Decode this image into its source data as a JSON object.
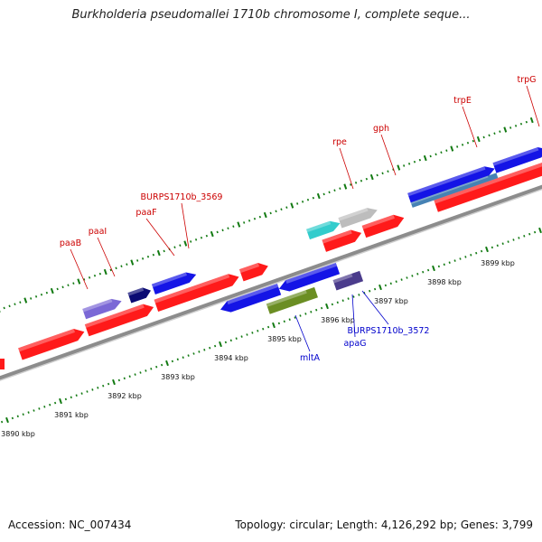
{
  "title": "Burkholderia pseudomallei 1710b chromosome I, complete seque...",
  "footer": {
    "accession": "Accession: NC_007434",
    "stats": "Topology: circular; Length: 4,126,292 bp; Genes: 3,799"
  },
  "colors": {
    "backbone": "#8c8c8c",
    "tick": "#127a12",
    "forward_label": "#cc0000",
    "reverse_label": "#0000cc",
    "cds": "#ff1a1a",
    "gene_blue": "#1414e6",
    "gene_navy": "#0a0a73",
    "gene_lavender": "#7b68d6",
    "gene_cyan": "#33cccc",
    "gene_gray": "#bdbdbd",
    "gene_olive": "#6b8e23",
    "gene_purple": "#4b3c8c",
    "gene_steel": "#4682b4"
  },
  "scale": {
    "unit": "kbp",
    "ticks": [
      {
        "value": 3890,
        "label": "3890 kbp"
      },
      {
        "value": 3891,
        "label": "3891 kbp"
      },
      {
        "value": 3892,
        "label": "3892 kbp"
      },
      {
        "value": 3893,
        "label": "3893 kbp"
      },
      {
        "value": 3894,
        "label": "3894 kbp"
      },
      {
        "value": 3895,
        "label": "3895 kbp"
      },
      {
        "value": 3896,
        "label": "3896 kbp"
      },
      {
        "value": 3897,
        "label": "3897 kbp"
      },
      {
        "value": 3898,
        "label": "3898 kbp"
      },
      {
        "value": 3899,
        "label": "3899 kbp"
      }
    ]
  },
  "forward_features": [
    {
      "name": "paaB",
      "start": 3891.9,
      "end": 3892.6,
      "color": "lavender"
    },
    {
      "name": "paaI",
      "start": 3892.75,
      "end": 3893.15,
      "color": "navy"
    },
    {
      "name": "paaF",
      "start": 3893.2,
      "end": 3894.0,
      "color": "blue"
    },
    {
      "name": "BURPS1710b_3569",
      "start": 3893.2,
      "end": 3894.0,
      "color": "blue"
    },
    {
      "name": "rpe",
      "start": 3896.1,
      "end": 3896.7,
      "color": "cyan"
    },
    {
      "name": "gph",
      "start": 3896.7,
      "end": 3897.4,
      "color": "gray"
    },
    {
      "name": "trpE",
      "start": 3898.0,
      "end": 3899.6,
      "color": "blue"
    },
    {
      "name": "trpG",
      "start": 3899.6,
      "end": 3900.2,
      "color": "blue"
    }
  ],
  "reverse_features": [
    {
      "name": "mltA",
      "start": 3895.0,
      "end": 3895.9,
      "color": "olive"
    },
    {
      "name": "apaG",
      "start": 3896.25,
      "end": 3896.75,
      "color": "purple"
    },
    {
      "name": "BURPS1710b_3572",
      "start": 3896.25,
      "end": 3896.75,
      "color": "purple"
    }
  ],
  "labels_forward": [
    "paaB",
    "paaI",
    "paaF",
    "BURPS1710b_3569",
    "rpe",
    "gph",
    "trpE",
    "trpG"
  ],
  "labels_reverse": [
    "mltA",
    "apaG",
    "BURPS1710b_3572"
  ]
}
